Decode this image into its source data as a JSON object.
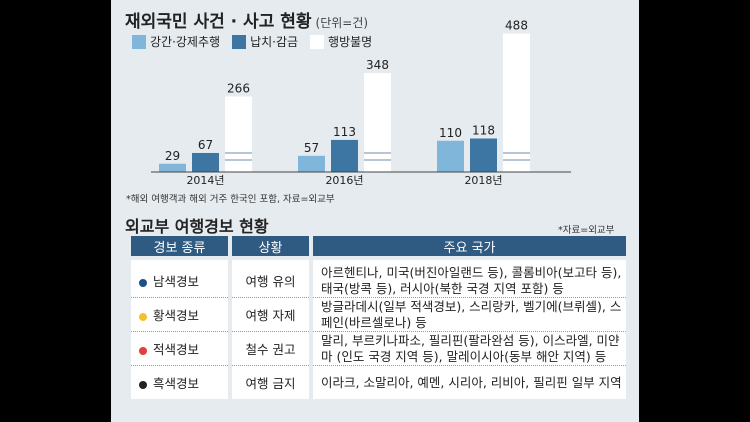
{
  "section1": {
    "title": "재외국민 사건 · 사고 현황",
    "unit": "(단위=건)",
    "note": "*해외 여행객과 해외 거주 한국인 포함, 자료=외교부"
  },
  "chart_data": {
    "type": "bar",
    "categories": [
      "2014년",
      "2016년",
      "2018년"
    ],
    "series": [
      {
        "name": "강간·강제추행",
        "values": [
          29,
          57,
          110
        ],
        "color": "#7fb6d9"
      },
      {
        "name": "납치·감금",
        "values": [
          67,
          113,
          118
        ],
        "color": "#3e76a3"
      },
      {
        "name": "행방불명",
        "values": [
          266,
          348,
          488
        ],
        "color": "#ffffff"
      }
    ],
    "title": "재외국민 사건 · 사고 현황",
    "xlabel": "",
    "ylabel": "",
    "ylim": [
      0,
      500
    ],
    "axis_break": true,
    "grid": false,
    "legend": "top-left"
  },
  "section2": {
    "title": "외교부 여행경보 현황",
    "source": "*자료=외교부",
    "headers": [
      "경보 종류",
      "상황",
      "주요 국가"
    ],
    "rows": [
      {
        "type": "남색경보",
        "color": "#1e4f86",
        "status": "여행 유의",
        "countries": "아르헨티나, 미국(버진아일랜드 등), 콜롬비아(보고타 등), 태국(방콕 등), 러시아(북한 국경 지역 포함) 등"
      },
      {
        "type": "황색경보",
        "color": "#f2c12e",
        "status": "여행 자제",
        "countries": "방글라데시(일부 적색경보), 스리랑카, 벨기에(브뤼셀), 스페인(바르셀로나) 등"
      },
      {
        "type": "적색경보",
        "color": "#e2403a",
        "status": "철수 권고",
        "countries": "말리, 부르키나파소, 필리핀(팔라완섬 등), 이스라엘, 미얀마 (인도 국경 지역 등), 말레이시아(동부 해안 지역) 등"
      },
      {
        "type": "흑색경보",
        "color": "#222222",
        "status": "여행 금지",
        "countries": "이라크, 소말리아, 예멘, 시리아, 리비아, 필리핀 일부 지역"
      }
    ]
  }
}
